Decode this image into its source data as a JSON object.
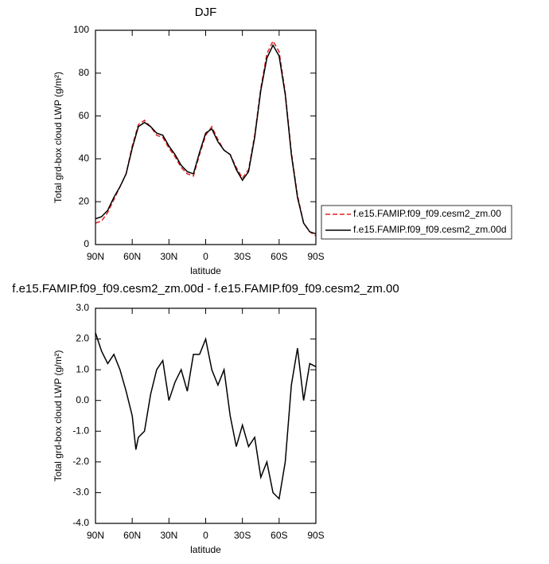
{
  "chart_data": [
    {
      "type": "line",
      "title": "DJF",
      "x": [
        90,
        85,
        80,
        75,
        70,
        65,
        60,
        55,
        50,
        45,
        40,
        35,
        30,
        25,
        20,
        15,
        10,
        5,
        0,
        -5,
        -10,
        -15,
        -20,
        -25,
        -30,
        -35,
        -40,
        -45,
        -50,
        -55,
        -60,
        -65,
        -70,
        -75,
        -80,
        -85,
        -90
      ],
      "series": [
        {
          "name": "f.e15.FAMIP.f09_f09.cesm2_zm.00",
          "color": "#e02020",
          "dashed": true,
          "values": [
            10,
            11,
            15,
            21,
            27,
            33,
            46,
            56,
            58,
            55,
            51,
            50,
            45,
            41,
            36,
            33,
            32,
            42,
            51,
            55,
            49,
            44,
            42,
            36,
            31,
            35,
            51,
            73,
            89,
            95,
            90,
            71,
            43,
            23,
            10,
            6,
            4
          ]
        },
        {
          "name": "f.e15.FAMIP.f09_f09.cesm2_zm.00d",
          "color": "#000000",
          "dashed": false,
          "values": [
            12,
            13,
            16,
            22,
            27,
            33,
            45,
            55,
            57,
            55,
            52,
            51,
            46,
            42,
            37,
            34,
            33,
            43,
            52,
            54,
            48,
            44,
            42,
            35,
            30,
            34,
            50,
            72,
            87,
            93,
            88,
            70,
            42,
            22,
            10,
            6,
            5
          ]
        }
      ],
      "xlim": [
        90,
        -90
      ],
      "xticks": [
        {
          "value": 90,
          "label": "90N"
        },
        {
          "value": 60,
          "label": "60N"
        },
        {
          "value": 30,
          "label": "30N"
        },
        0,
        {
          "value": -30,
          "label": "30S"
        },
        {
          "value": -60,
          "label": "60S"
        },
        {
          "value": -90,
          "label": "90S"
        }
      ],
      "ylim": [
        0,
        100
      ],
      "yticks": [
        0,
        20,
        40,
        60,
        80,
        100
      ],
      "xlabel": "latitude",
      "ylabel": "Total grd-box cloud LWP (g/m²)",
      "legend": "right"
    },
    {
      "type": "line",
      "title": "f.e15.FAMIP.f09_f09.cesm2_zm.00d - f.e15.FAMIP.f09_f09.cesm2_zm.00",
      "x": [
        90,
        85,
        80,
        75,
        70,
        65,
        60,
        57,
        55,
        50,
        45,
        40,
        35,
        30,
        25,
        20,
        15,
        10,
        5,
        0,
        -5,
        -10,
        -15,
        -20,
        -25,
        -30,
        -35,
        -40,
        -45,
        -50,
        -55,
        -60,
        -65,
        -70,
        -75,
        -80,
        -85,
        -90
      ],
      "color": "#000000",
      "values": [
        2.2,
        1.6,
        1.2,
        1.5,
        1.0,
        0.3,
        -0.5,
        -1.6,
        -1.2,
        -1.0,
        0.2,
        1.0,
        1.3,
        0.0,
        0.6,
        1.0,
        0.3,
        1.5,
        1.5,
        2.0,
        1.0,
        0.5,
        1.0,
        -0.5,
        -1.5,
        -0.8,
        -1.5,
        -1.2,
        -2.5,
        -2.0,
        -3.0,
        -3.2,
        -2.0,
        0.5,
        1.7,
        0.0,
        1.2,
        1.1
      ],
      "xlim": [
        90,
        -90
      ],
      "xticks": [
        {
          "value": 90,
          "label": "90N"
        },
        {
          "value": 60,
          "label": "60N"
        },
        {
          "value": 30,
          "label": "30N"
        },
        0,
        {
          "value": -30,
          "label": "30S"
        },
        {
          "value": -60,
          "label": "60S"
        },
        {
          "value": -90,
          "label": "90S"
        }
      ],
      "ylim": [
        -4,
        3
      ],
      "yticks": [
        {
          "value": -4,
          "label": "-4.0"
        },
        {
          "value": -3,
          "label": "-3.0"
        },
        {
          "value": -2,
          "label": "-2.0"
        },
        {
          "value": -1,
          "label": "-1.0"
        },
        {
          "value": 0,
          "label": "0.0"
        },
        {
          "value": 1,
          "label": "1.0"
        },
        {
          "value": 2,
          "label": "2.0"
        },
        {
          "value": 3,
          "label": "3.0"
        }
      ],
      "xlabel": "latitude",
      "ylabel": "Total grd-box cloud LWP (g/m²)"
    }
  ]
}
